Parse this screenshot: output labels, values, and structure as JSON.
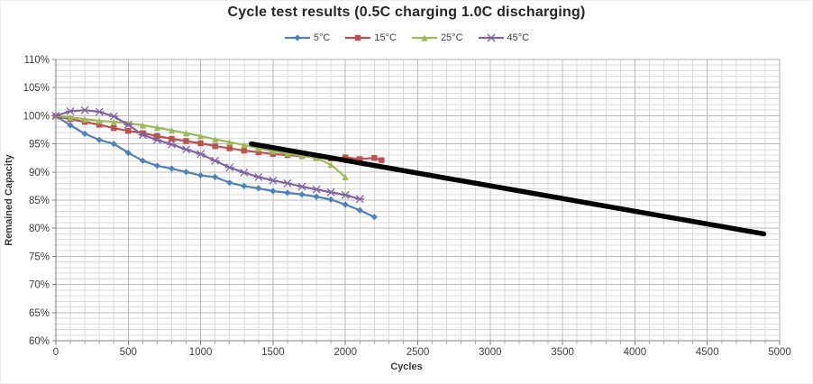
{
  "chart_data": {
    "type": "line",
    "title": "Cycle test results (0.5C charging 1.0C discharging)",
    "xlabel": "Cycles",
    "ylabel": "Remained Capacity",
    "xlim": [
      0,
      5000
    ],
    "ylim": [
      60,
      110
    ],
    "grid": true,
    "legend_position": "top",
    "x_tick_values": [
      0,
      500,
      1000,
      1500,
      2000,
      2500,
      3000,
      3500,
      4000,
      4500,
      5000
    ],
    "x_tick_labels": [
      "0",
      "500",
      "1000",
      "1500",
      "2000",
      "2500",
      "3000",
      "3500",
      "4000",
      "4500",
      "5000"
    ],
    "x_minor_step": 100,
    "y_tick_values": [
      110,
      105,
      100,
      95,
      90,
      85,
      80,
      75,
      70,
      65,
      60
    ],
    "y_tick_labels": [
      "110%",
      "105%",
      "100%",
      "95%",
      "90%",
      "85%",
      "80%",
      "75%",
      "70%",
      "65%",
      "60%"
    ],
    "y_minor_step": 1,
    "series": [
      {
        "name": "5°C",
        "color": "#4F81BD",
        "marker": "diamond",
        "in_legend": true,
        "x": [
          0,
          100,
          200,
          300,
          400,
          500,
          600,
          700,
          800,
          900,
          1000,
          1100,
          1200,
          1300,
          1400,
          1500,
          1600,
          1700,
          1800,
          1900,
          2000,
          2100,
          2200
        ],
        "y": [
          100,
          98.3,
          96.8,
          95.7,
          95.0,
          93.4,
          92.0,
          91.1,
          90.6,
          90.0,
          89.4,
          89.1,
          88.1,
          87.5,
          87.1,
          86.6,
          86.3,
          86.0,
          85.6,
          85.1,
          84.2,
          83.2,
          82.0
        ]
      },
      {
        "name": "15°C",
        "color": "#C0504D",
        "marker": "square",
        "in_legend": true,
        "x": [
          0,
          100,
          200,
          300,
          400,
          500,
          600,
          700,
          800,
          900,
          1000,
          1100,
          1200,
          1300,
          1400,
          1500,
          1600,
          1700,
          1800,
          1900,
          2000,
          2100,
          2200,
          2250
        ],
        "y": [
          99.9,
          99.4,
          98.9,
          98.4,
          97.8,
          97.3,
          96.9,
          96.4,
          95.9,
          95.5,
          95.1,
          94.6,
          94.2,
          93.8,
          93.5,
          93.2,
          93.0,
          92.8,
          92.6,
          92.4,
          92.6,
          92.3,
          92.5,
          92.1
        ]
      },
      {
        "name": "25°C",
        "color": "#9BBB59",
        "marker": "triangle",
        "in_legend": true,
        "x": [
          0,
          100,
          200,
          300,
          400,
          500,
          600,
          700,
          800,
          900,
          1000,
          1100,
          1200,
          1300,
          1400,
          1500,
          1600,
          1700,
          1800,
          1900,
          2000
        ],
        "y": [
          100,
          99.7,
          99.4,
          99.1,
          98.9,
          98.7,
          98.3,
          97.9,
          97.4,
          96.9,
          96.4,
          95.8,
          95.3,
          94.8,
          94.2,
          93.7,
          93.3,
          92.9,
          92.5,
          91.3,
          89.1
        ]
      },
      {
        "name": "45°C",
        "color": "#8064A2",
        "marker": "star",
        "in_legend": true,
        "x": [
          0,
          100,
          200,
          300,
          400,
          500,
          600,
          700,
          800,
          900,
          1000,
          1100,
          1200,
          1300,
          1400,
          1500,
          1600,
          1700,
          1800,
          1900,
          2000,
          2100
        ],
        "y": [
          100,
          100.8,
          101.0,
          100.7,
          99.9,
          98.4,
          96.6,
          95.7,
          94.9,
          94.0,
          93.2,
          92.0,
          90.8,
          89.9,
          89.1,
          88.5,
          88.0,
          87.4,
          86.9,
          86.4,
          85.9,
          85.2
        ]
      },
      {
        "name": "linear-trend",
        "color": "#000000",
        "marker": "none",
        "in_legend": false,
        "line_width": 5.5,
        "x": [
          1350,
          4890
        ],
        "y": [
          95.0,
          79.0
        ]
      }
    ],
    "style": {
      "grid_minor_color": "#dadada",
      "grid_major_color": "#b8b8b8",
      "axis_color": "#808080",
      "border_color": "#b0b0b0",
      "tick_label_color": "#404040"
    }
  }
}
